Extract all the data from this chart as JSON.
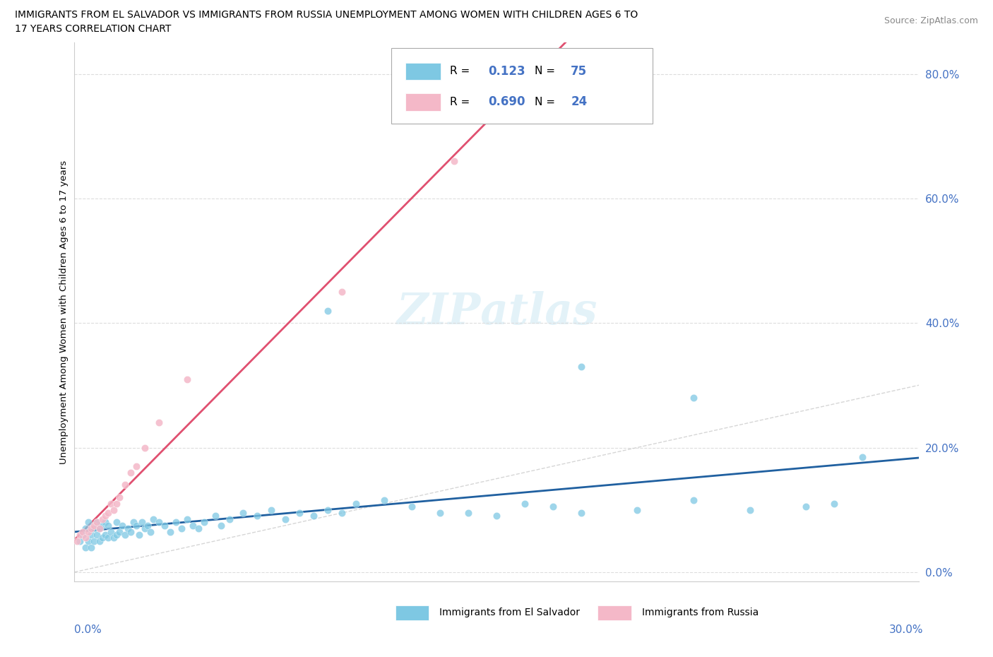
{
  "title_line1": "IMMIGRANTS FROM EL SALVADOR VS IMMIGRANTS FROM RUSSIA UNEMPLOYMENT AMONG WOMEN WITH CHILDREN AGES 6 TO",
  "title_line2": "17 YEARS CORRELATION CHART",
  "source": "Source: ZipAtlas.com",
  "ylabel": "Unemployment Among Women with Children Ages 6 to 17 years",
  "xlim": [
    0.0,
    0.3
  ],
  "ylim": [
    -0.015,
    0.85
  ],
  "yticks": [
    0.0,
    0.2,
    0.4,
    0.6,
    0.8
  ],
  "ytick_labels": [
    "0.0%",
    "20.0%",
    "40.0%",
    "60.0%",
    "80.0%"
  ],
  "color_salvador": "#7ec8e3",
  "color_russia": "#f4b8c8",
  "color_salvador_line": "#2060a0",
  "color_russia_line": "#e05070",
  "color_diagonal": "#cccccc",
  "R_salvador": 0.123,
  "N_salvador": 75,
  "R_russia": 0.69,
  "N_russia": 24,
  "watermark": "ZIPAtlas",
  "legend_label_salvador": "Immigrants from El Salvador",
  "legend_label_russia": "Immigrants from Russia",
  "el_salvador_x": [
    0.002,
    0.003,
    0.004,
    0.004,
    0.005,
    0.005,
    0.006,
    0.006,
    0.007,
    0.007,
    0.008,
    0.008,
    0.009,
    0.009,
    0.01,
    0.01,
    0.011,
    0.011,
    0.012,
    0.012,
    0.013,
    0.014,
    0.015,
    0.015,
    0.016,
    0.017,
    0.018,
    0.019,
    0.02,
    0.021,
    0.022,
    0.023,
    0.024,
    0.025,
    0.026,
    0.027,
    0.028,
    0.03,
    0.032,
    0.034,
    0.036,
    0.038,
    0.04,
    0.042,
    0.044,
    0.046,
    0.05,
    0.052,
    0.055,
    0.06,
    0.065,
    0.07,
    0.075,
    0.08,
    0.085,
    0.09,
    0.095,
    0.1,
    0.11,
    0.12,
    0.13,
    0.14,
    0.15,
    0.16,
    0.17,
    0.18,
    0.2,
    0.22,
    0.24,
    0.26,
    0.27,
    0.28,
    0.18,
    0.22,
    0.09
  ],
  "el_salvador_y": [
    0.05,
    0.06,
    0.04,
    0.07,
    0.05,
    0.08,
    0.04,
    0.06,
    0.05,
    0.07,
    0.06,
    0.08,
    0.05,
    0.07,
    0.055,
    0.075,
    0.06,
    0.08,
    0.055,
    0.075,
    0.065,
    0.055,
    0.06,
    0.08,
    0.065,
    0.075,
    0.06,
    0.07,
    0.065,
    0.08,
    0.075,
    0.06,
    0.08,
    0.07,
    0.075,
    0.065,
    0.085,
    0.08,
    0.075,
    0.065,
    0.08,
    0.07,
    0.085,
    0.075,
    0.07,
    0.08,
    0.09,
    0.075,
    0.085,
    0.095,
    0.09,
    0.1,
    0.085,
    0.095,
    0.09,
    0.1,
    0.095,
    0.11,
    0.115,
    0.105,
    0.095,
    0.095,
    0.09,
    0.11,
    0.105,
    0.095,
    0.1,
    0.115,
    0.1,
    0.105,
    0.11,
    0.185,
    0.33,
    0.28,
    0.42
  ],
  "russia_x": [
    0.001,
    0.002,
    0.003,
    0.004,
    0.005,
    0.006,
    0.007,
    0.008,
    0.009,
    0.01,
    0.011,
    0.012,
    0.013,
    0.014,
    0.015,
    0.016,
    0.018,
    0.02,
    0.022,
    0.025,
    0.03,
    0.04,
    0.095,
    0.135
  ],
  "russia_y": [
    0.05,
    0.06,
    0.065,
    0.055,
    0.065,
    0.07,
    0.075,
    0.08,
    0.07,
    0.085,
    0.09,
    0.095,
    0.11,
    0.1,
    0.11,
    0.12,
    0.14,
    0.16,
    0.17,
    0.2,
    0.24,
    0.31,
    0.45,
    0.66
  ]
}
